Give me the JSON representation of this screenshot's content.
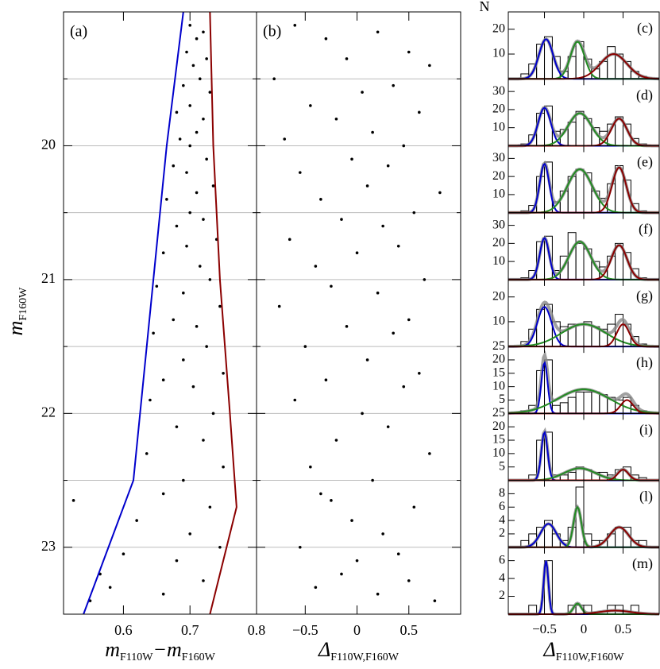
{
  "chart_data": [
    {
      "type": "scatter",
      "panel_label": "(a)",
      "x": [
        0.7,
        0.72,
        0.71,
        0.695,
        0.725,
        0.705,
        0.715,
        0.69,
        0.73,
        0.7,
        0.68,
        0.72,
        0.71,
        0.685,
        0.7,
        0.725,
        0.675,
        0.695,
        0.735,
        0.71,
        0.665,
        0.7,
        0.72,
        0.68,
        0.74,
        0.695,
        0.66,
        0.715,
        0.73,
        0.65,
        0.69,
        0.745,
        0.675,
        0.71,
        0.645,
        0.725,
        0.69,
        0.75,
        0.66,
        0.705,
        0.64,
        0.735,
        0.68,
        0.72,
        0.635,
        0.75,
        0.69,
        0.66,
        0.73,
        0.62,
        0.7,
        0.745,
        0.6,
        0.68,
        0.565,
        0.72,
        0.58,
        0.66,
        0.55,
        0.525
      ],
      "y": [
        19.1,
        19.15,
        19.2,
        19.3,
        19.35,
        19.4,
        19.5,
        19.55,
        19.6,
        19.7,
        19.75,
        19.8,
        19.9,
        19.95,
        20.0,
        20.1,
        20.15,
        20.2,
        20.3,
        20.35,
        20.4,
        20.5,
        20.55,
        20.6,
        20.7,
        20.75,
        20.8,
        20.9,
        21.0,
        21.05,
        21.1,
        21.2,
        21.3,
        21.35,
        21.4,
        21.5,
        21.6,
        21.7,
        21.75,
        21.8,
        21.9,
        22.0,
        22.1,
        22.2,
        22.3,
        22.4,
        22.5,
        22.6,
        22.7,
        22.8,
        22.9,
        23.0,
        23.05,
        23.1,
        23.2,
        23.25,
        23.3,
        23.35,
        23.4,
        22.65
      ],
      "point_color": "#000000",
      "xlim": [
        0.51,
        0.8
      ],
      "ylim": [
        23.5,
        19.0
      ],
      "xticks": [
        0.6,
        0.7,
        0.8
      ],
      "yticks": [
        20,
        21,
        22,
        23
      ],
      "minor_yticks": [
        19.5,
        20.5,
        21.5,
        22.5
      ],
      "grid": true,
      "ytick_labels": true,
      "xlabel": [
        "m",
        "F110W",
        "−m",
        "F160W"
      ],
      "ylabel": [
        "m",
        "F160W"
      ],
      "lines": [
        {
          "color": "#0000cc",
          "x": [
            0.69,
            0.665,
            0.645,
            0.625,
            0.615,
            0.54
          ],
          "y": [
            19.0,
            20.0,
            21.0,
            22.0,
            22.5,
            23.5
          ]
        },
        {
          "color": "#8b0000",
          "x": [
            0.73,
            0.735,
            0.745,
            0.76,
            0.77,
            0.73
          ],
          "y": [
            19.0,
            20.0,
            21.0,
            22.0,
            22.7,
            23.5
          ]
        }
      ]
    },
    {
      "type": "scatter",
      "panel_label": "(b)",
      "x": [
        -0.6,
        0.2,
        -0.3,
        0.5,
        -0.1,
        0.7,
        -0.8,
        0.35,
        0.05,
        -0.45,
        0.6,
        -0.2,
        0.15,
        -0.7,
        0.45,
        -0.05,
        0.3,
        -0.55,
        0.1,
        0.8,
        -0.35,
        0.55,
        -0.15,
        0.25,
        -0.65,
        0.4,
        0.0,
        -0.4,
        0.65,
        -0.25,
        0.2,
        -0.75,
        0.5,
        -0.1,
        0.35,
        -0.5,
        0.1,
        0.6,
        -0.3,
        0.45,
        -0.6,
        0.05,
        0.3,
        -0.2,
        0.7,
        -0.45,
        0.15,
        -0.35,
        0.55,
        -0.05,
        0.25,
        -0.55,
        0.4,
        0.0,
        -0.15,
        0.5,
        -0.4,
        0.2,
        0.75,
        -0.25
      ],
      "y": [
        19.1,
        19.15,
        19.2,
        19.3,
        19.35,
        19.4,
        19.5,
        19.55,
        19.6,
        19.7,
        19.75,
        19.8,
        19.9,
        19.95,
        20.0,
        20.1,
        20.15,
        20.2,
        20.3,
        20.35,
        20.4,
        20.5,
        20.55,
        20.6,
        20.7,
        20.75,
        20.8,
        20.9,
        21.0,
        21.05,
        21.1,
        21.2,
        21.3,
        21.35,
        21.4,
        21.5,
        21.6,
        21.7,
        21.75,
        21.8,
        21.9,
        22.0,
        22.1,
        22.2,
        22.3,
        22.4,
        22.5,
        22.6,
        22.7,
        22.8,
        22.9,
        23.0,
        23.05,
        23.1,
        23.2,
        23.25,
        23.3,
        23.35,
        23.4,
        22.65
      ],
      "point_color": "#000000",
      "xlim": [
        -0.97,
        1.0
      ],
      "ylim": [
        23.5,
        19.0
      ],
      "xticks": [
        {
          "value": -0.5,
          "label": "−0.5"
        },
        0,
        0.5
      ],
      "yticks": [
        20,
        21,
        22,
        23
      ],
      "minor_yticks": [
        19.5,
        20.5,
        21.5,
        22.5
      ],
      "grid": true,
      "ytick_labels": false,
      "xlabel": [
        "Δ",
        "F110W,F160W"
      ]
    },
    {
      "type": "histogram",
      "panel_label": "(c)",
      "ylabel": "N",
      "bins": [
        -0.9,
        -0.8,
        -0.7,
        -0.6,
        -0.5,
        -0.4,
        -0.3,
        -0.2,
        -0.1,
        0,
        0.1,
        0.2,
        0.3,
        0.4,
        0.5,
        0.6,
        0.7,
        0.8,
        0.9
      ],
      "counts": [
        0,
        2,
        6,
        14,
        17,
        9,
        3,
        9,
        15,
        8,
        4,
        7,
        13,
        10,
        7,
        3,
        1,
        0
      ],
      "xlim": [
        -0.96,
        0.96
      ],
      "xticks": [
        {
          "value": -0.5,
          "label": "−0.5"
        },
        0,
        0.5
      ],
      "xtick_labels": false,
      "ylim": [
        0,
        27
      ],
      "yticks": [
        10,
        20
      ],
      "bar_color": "#000000",
      "fit_color": "#888888",
      "components": [
        {
          "color": "#0000cc",
          "amplitude": 16,
          "mean": -0.48,
          "sigma": 0.09
        },
        {
          "color": "#228b22",
          "amplitude": 15,
          "mean": -0.08,
          "sigma": 0.09
        },
        {
          "color": "#8b0000",
          "amplitude": 10,
          "mean": 0.38,
          "sigma": 0.17
        }
      ]
    },
    {
      "type": "histogram",
      "panel_label": "(d)",
      "bins": [
        -0.9,
        -0.8,
        -0.7,
        -0.6,
        -0.5,
        -0.4,
        -0.3,
        -0.2,
        -0.1,
        0,
        0.1,
        0.2,
        0.3,
        0.4,
        0.5,
        0.6,
        0.7,
        0.8,
        0.9
      ],
      "counts": [
        0,
        1,
        6,
        18,
        22,
        8,
        9,
        13,
        19,
        15,
        10,
        8,
        12,
        16,
        12,
        4,
        1,
        0
      ],
      "xlim": [
        -0.96,
        0.96
      ],
      "xticks": [
        {
          "value": -0.5,
          "label": "−0.5"
        },
        0,
        0.5
      ],
      "xtick_labels": false,
      "ylim": [
        0,
        37
      ],
      "yticks": [
        10,
        20,
        30
      ],
      "bar_color": "#000000",
      "fit_color": "#888888",
      "components": [
        {
          "color": "#0000cc",
          "amplitude": 21,
          "mean": -0.5,
          "sigma": 0.08
        },
        {
          "color": "#228b22",
          "amplitude": 18,
          "mean": -0.05,
          "sigma": 0.15
        },
        {
          "color": "#8b0000",
          "amplitude": 15,
          "mean": 0.45,
          "sigma": 0.1
        }
      ]
    },
    {
      "type": "histogram",
      "panel_label": "(e)",
      "bins": [
        -0.9,
        -0.8,
        -0.7,
        -0.6,
        -0.5,
        -0.4,
        -0.3,
        -0.2,
        -0.1,
        0,
        0.1,
        0.2,
        0.3,
        0.4,
        0.5,
        0.6,
        0.7,
        0.8,
        0.9
      ],
      "counts": [
        0,
        1,
        4,
        20,
        28,
        6,
        12,
        20,
        24,
        22,
        12,
        8,
        16,
        26,
        18,
        5,
        1,
        0
      ],
      "xlim": [
        -0.96,
        0.96
      ],
      "xticks": [
        {
          "value": -0.5,
          "label": "−0.5"
        },
        0,
        0.5
      ],
      "xtick_labels": false,
      "ylim": [
        0,
        37
      ],
      "yticks": [
        10,
        20,
        30
      ],
      "bar_color": "#000000",
      "fit_color": "#888888",
      "components": [
        {
          "color": "#0000cc",
          "amplitude": 27,
          "mean": -0.5,
          "sigma": 0.06
        },
        {
          "color": "#228b22",
          "amplitude": 24,
          "mean": -0.05,
          "sigma": 0.16
        },
        {
          "color": "#8b0000",
          "amplitude": 25,
          "mean": 0.45,
          "sigma": 0.09
        }
      ]
    },
    {
      "type": "histogram",
      "panel_label": "(f)",
      "bins": [
        -0.9,
        -0.8,
        -0.7,
        -0.6,
        -0.5,
        -0.4,
        -0.3,
        -0.2,
        -0.1,
        0,
        0.1,
        0.2,
        0.3,
        0.4,
        0.5,
        0.6,
        0.7,
        0.8,
        0.9
      ],
      "counts": [
        0,
        1,
        5,
        21,
        24,
        5,
        13,
        26,
        20,
        17,
        10,
        7,
        13,
        20,
        15,
        6,
        1,
        0
      ],
      "xlim": [
        -0.96,
        0.96
      ],
      "xticks": [
        {
          "value": -0.5,
          "label": "−0.5"
        },
        0,
        0.5
      ],
      "xtick_labels": false,
      "ylim": [
        0,
        37
      ],
      "yticks": [
        10,
        20,
        30
      ],
      "bar_color": "#000000",
      "fit_color": "#888888",
      "components": [
        {
          "color": "#0000cc",
          "amplitude": 23,
          "mean": -0.5,
          "sigma": 0.06
        },
        {
          "color": "#228b22",
          "amplitude": 21,
          "mean": -0.05,
          "sigma": 0.14
        },
        {
          "color": "#8b0000",
          "amplitude": 19,
          "mean": 0.45,
          "sigma": 0.1
        }
      ]
    },
    {
      "type": "histogram",
      "panel_label": "(g)",
      "bins": [
        -0.9,
        -0.8,
        -0.7,
        -0.6,
        -0.5,
        -0.4,
        -0.3,
        -0.2,
        -0.1,
        0,
        0.1,
        0.2,
        0.3,
        0.4,
        0.5,
        0.6,
        0.7,
        0.8,
        0.9
      ],
      "counts": [
        0,
        2,
        7,
        15,
        17,
        10,
        8,
        9,
        9,
        10,
        8,
        7,
        9,
        13,
        9,
        4,
        1,
        0
      ],
      "xlim": [
        -0.96,
        0.96
      ],
      "xticks": [
        {
          "value": -0.5,
          "label": "−0.5"
        },
        0,
        0.5
      ],
      "xtick_labels": false,
      "ylim": [
        0,
        27
      ],
      "yticks": [
        10,
        20
      ],
      "bar_color": "#000000",
      "fit_color": "#888888",
      "components": [
        {
          "color": "#0000cc",
          "amplitude": 16,
          "mean": -0.5,
          "sigma": 0.09
        },
        {
          "color": "#228b22",
          "amplitude": 9,
          "mean": 0.0,
          "sigma": 0.28
        },
        {
          "color": "#8b0000",
          "amplitude": 9,
          "mean": 0.5,
          "sigma": 0.08
        }
      ]
    },
    {
      "type": "histogram",
      "panel_label": "(h)",
      "bins": [
        -0.9,
        -0.8,
        -0.7,
        -0.6,
        -0.5,
        -0.4,
        -0.3,
        -0.2,
        -0.1,
        0,
        0.1,
        0.2,
        0.3,
        0.4,
        0.5,
        0.6,
        0.7,
        0.8,
        0.9
      ],
      "counts": [
        0,
        1,
        3,
        16,
        20,
        3,
        4,
        6,
        8,
        8,
        8,
        7,
        6,
        5,
        6,
        3,
        1,
        0
      ],
      "xlim": [
        -0.96,
        0.96
      ],
      "xticks": [
        {
          "value": -0.5,
          "label": "−0.5"
        },
        0,
        0.5
      ],
      "xtick_labels": false,
      "ylim": [
        0,
        25
      ],
      "yticks": [
        5,
        10,
        15,
        20,
        25
      ],
      "bar_color": "#000000",
      "fit_color": "#888888",
      "components": [
        {
          "color": "#0000cc",
          "amplitude": 19,
          "mean": -0.5,
          "sigma": 0.04
        },
        {
          "color": "#228b22",
          "amplitude": 9,
          "mean": 0.0,
          "sigma": 0.33
        },
        {
          "color": "#8b0000",
          "amplitude": 5,
          "mean": 0.55,
          "sigma": 0.08
        }
      ]
    },
    {
      "type": "histogram",
      "panel_label": "(i)",
      "bins": [
        -0.9,
        -0.8,
        -0.7,
        -0.6,
        -0.5,
        -0.4,
        -0.3,
        -0.2,
        -0.1,
        0,
        0.1,
        0.2,
        0.3,
        0.4,
        0.5,
        0.6,
        0.7,
        0.8,
        0.9
      ],
      "counts": [
        0,
        0,
        2,
        15,
        18,
        2,
        2,
        3,
        5,
        4,
        3,
        3,
        2,
        4,
        5,
        2,
        1,
        0
      ],
      "xlim": [
        -0.96,
        0.96
      ],
      "xticks": [
        {
          "value": -0.5,
          "label": "−0.5"
        },
        0,
        0.5
      ],
      "xtick_labels": false,
      "ylim": [
        0,
        25
      ],
      "yticks": [
        5,
        10,
        15,
        20,
        25
      ],
      "bar_color": "#000000",
      "fit_color": "#888888",
      "components": [
        {
          "color": "#0000cc",
          "amplitude": 18,
          "mean": -0.5,
          "sigma": 0.04
        },
        {
          "color": "#228b22",
          "amplitude": 4.5,
          "mean": -0.05,
          "sigma": 0.2
        },
        {
          "color": "#8b0000",
          "amplitude": 4,
          "mean": 0.5,
          "sigma": 0.07
        }
      ]
    },
    {
      "type": "histogram",
      "panel_label": "(l)",
      "bins": [
        -0.9,
        -0.8,
        -0.7,
        -0.6,
        -0.5,
        -0.4,
        -0.3,
        -0.2,
        -0.1,
        0,
        0.1,
        0.2,
        0.3,
        0.4,
        0.5,
        0.6,
        0.7,
        0.8,
        0.9
      ],
      "counts": [
        0,
        1,
        2,
        3,
        4,
        2,
        1,
        3,
        9,
        2,
        1,
        1,
        2,
        3,
        3,
        1,
        1,
        0
      ],
      "xlim": [
        -0.96,
        0.96
      ],
      "xticks": [
        {
          "value": -0.5,
          "label": "−0.5"
        },
        0,
        0.5
      ],
      "xtick_labels": false,
      "ylim": [
        0,
        10
      ],
      "yticks": [
        2,
        4,
        6,
        8
      ],
      "bar_color": "#000000",
      "fit_color": "#888888",
      "components": [
        {
          "color": "#0000cc",
          "amplitude": 3.5,
          "mean": -0.45,
          "sigma": 0.1
        },
        {
          "color": "#228b22",
          "amplitude": 6,
          "mean": -0.08,
          "sigma": 0.05
        },
        {
          "color": "#8b0000",
          "amplitude": 3,
          "mean": 0.45,
          "sigma": 0.12
        }
      ]
    },
    {
      "type": "histogram",
      "panel_label": "(m)",
      "xlabel": [
        "Δ",
        "F110W,F160W"
      ],
      "bins": [
        -0.9,
        -0.8,
        -0.7,
        -0.6,
        -0.5,
        -0.4,
        -0.3,
        -0.2,
        -0.1,
        0,
        0.1,
        0.2,
        0.3,
        0.4,
        0.5,
        0.6,
        0.7,
        0.8,
        0.9
      ],
      "counts": [
        0,
        0,
        1,
        0,
        6,
        0,
        0,
        1,
        1,
        1,
        0,
        0,
        1,
        1,
        0,
        1,
        0,
        0
      ],
      "xlim": [
        -0.96,
        0.96
      ],
      "xticks": [
        {
          "value": -0.5,
          "label": "−0.5"
        },
        0,
        0.5
      ],
      "xtick_labels": true,
      "ylim": [
        0,
        7.5
      ],
      "yticks": [
        2,
        4,
        6
      ],
      "bar_color": "#000000",
      "fit_color": "#888888",
      "components": [
        {
          "color": "#0000cc",
          "amplitude": 6,
          "mean": -0.48,
          "sigma": 0.03
        },
        {
          "color": "#228b22",
          "amplitude": 1.2,
          "mean": -0.08,
          "sigma": 0.05
        },
        {
          "color": "#8b0000",
          "amplitude": 0.4,
          "mean": 0.4,
          "sigma": 0.2
        }
      ]
    }
  ]
}
